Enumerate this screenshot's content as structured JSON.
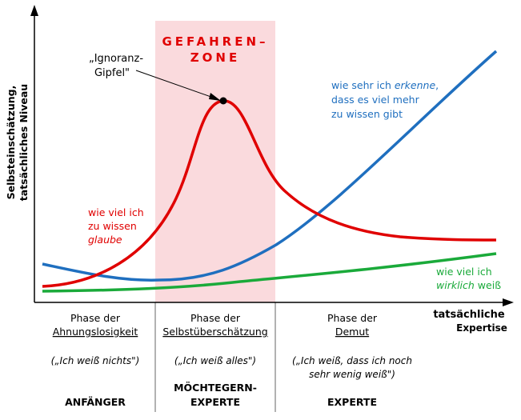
{
  "diagram": {
    "y_axis_label_line1": "Selbsteinschätzung,",
    "y_axis_label_line2": "tatsächliches Niveau",
    "x_axis_label_line1": "tatsächliche",
    "x_axis_label_line2": "Expertise",
    "danger_zone_line1": "GEFAHREN–",
    "danger_zone_line2": "ZONE",
    "peak_label_line1": "„Ignoranz-",
    "peak_label_line2": "Gipfel\"",
    "curves": {
      "believe": {
        "line1": "wie viel ich",
        "line2": "zu wissen",
        "line3": "glaube",
        "color": "#e00000"
      },
      "recognize": {
        "line1_a": "wie sehr ich ",
        "line1_b": "erkenne",
        "line1_c": ",",
        "line2": "dass es viel mehr",
        "line3": "zu wissen gibt",
        "color": "#1f6fbf"
      },
      "know": {
        "line1": "wie viel ich",
        "line2_a": "wirklich",
        "line2_b": " weiß",
        "color": "#1aaa3a"
      }
    },
    "zone_color": "#fadadd",
    "phases": [
      {
        "phase_line1": "Phase der",
        "phase_line2": "Ahnungslosigkeit",
        "quote_line1": "(„Ich weiß nichts\")",
        "quote_line2": "",
        "role_line1": "ANFÄNGER",
        "role_line2": ""
      },
      {
        "phase_line1": "Phase der",
        "phase_line2": "Selbstüberschätzung",
        "quote_line1": "(„Ich weiß alles\")",
        "quote_line2": "",
        "role_line1": "MÖCHTEGERN-",
        "role_line2": "EXPERTE"
      },
      {
        "phase_line1": "Phase der",
        "phase_line2": "Demut",
        "quote_line1": "(„Ich weiß, dass ich noch",
        "quote_line2": "sehr wenig weiß\")",
        "role_line1": "EXPERTE",
        "role_line2": ""
      }
    ]
  }
}
